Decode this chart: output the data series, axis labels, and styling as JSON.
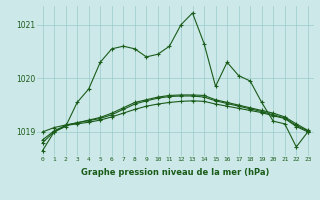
{
  "title": "Graphe pression niveau de la mer (hPa)",
  "bg_color": "#cce8e8",
  "grid_color": "#99cccc",
  "line_color": "#1a5c1a",
  "marker": "+",
  "ylabel_ticks": [
    1019,
    1020,
    1021
  ],
  "xlim": [
    -0.5,
    23.5
  ],
  "ylim": [
    1018.55,
    1021.35
  ],
  "series_main": [
    1018.65,
    1019.0,
    1019.1,
    1019.55,
    1019.8,
    1020.3,
    1020.55,
    1020.6,
    1020.55,
    1020.4,
    1020.45,
    1020.6,
    1021.0,
    1021.22,
    1020.65,
    1019.85,
    1020.3,
    1020.05,
    1019.95,
    1019.55,
    1019.2,
    1019.15,
    1018.72,
    1019.0
  ],
  "series_a": [
    1018.8,
    1019.0,
    1019.12,
    1019.15,
    1019.18,
    1019.22,
    1019.28,
    1019.35,
    1019.42,
    1019.48,
    1019.52,
    1019.55,
    1019.57,
    1019.58,
    1019.57,
    1019.52,
    1019.48,
    1019.44,
    1019.4,
    1019.36,
    1019.3,
    1019.25,
    1019.1,
    1019.0
  ],
  "series_b": [
    1019.0,
    1019.08,
    1019.13,
    1019.17,
    1019.21,
    1019.25,
    1019.32,
    1019.42,
    1019.52,
    1019.58,
    1019.63,
    1019.66,
    1019.67,
    1019.67,
    1019.65,
    1019.58,
    1019.53,
    1019.48,
    1019.43,
    1019.38,
    1019.32,
    1019.26,
    1019.12,
    1019.02
  ],
  "series_c": [
    1018.85,
    1019.02,
    1019.12,
    1019.17,
    1019.22,
    1019.27,
    1019.35,
    1019.45,
    1019.55,
    1019.6,
    1019.65,
    1019.68,
    1019.69,
    1019.69,
    1019.68,
    1019.6,
    1019.55,
    1019.5,
    1019.45,
    1019.4,
    1019.35,
    1019.28,
    1019.15,
    1019.03
  ],
  "xtick_labels": [
    "0",
    "1",
    "2",
    "3",
    "4",
    "5",
    "6",
    "7",
    "8",
    "9",
    "10",
    "11",
    "12",
    "13",
    "14",
    "15",
    "16",
    "17",
    "18",
    "19",
    "20",
    "21",
    "22",
    "23"
  ]
}
